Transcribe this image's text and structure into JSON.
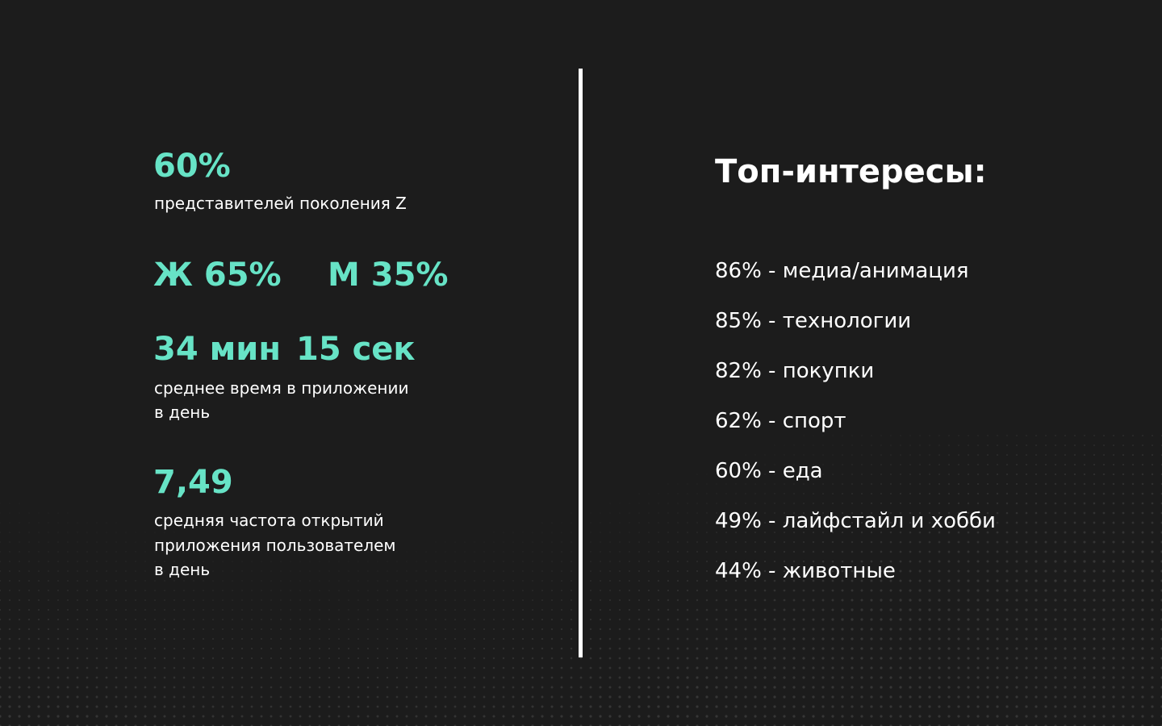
{
  "colors": {
    "background": "#1c1c1c",
    "accent": "#67e3c6",
    "text": "#ffffff",
    "dots": "#3a3a3a"
  },
  "stats": {
    "gen_z_value": "60%",
    "gen_z_caption": "представителей поколения Z",
    "female": "Ж 65%",
    "male": "М 35%",
    "time_minutes": "34 мин",
    "time_seconds": "15 сек",
    "time_caption_line1": "среднее время в приложении",
    "time_caption_line2": "в день",
    "frequency_value": "7,49",
    "frequency_caption_line1": "средняя частота открытий",
    "frequency_caption_line2": "приложения пользователем",
    "frequency_caption_line3": "в день"
  },
  "interests": {
    "heading": "Топ-интересы:",
    "items": [
      "86% - медиа/анимация",
      "85% - технологии",
      "82% - покупки",
      "62% - спорт",
      "60% - еда",
      "49% - лайфстайл и хобби",
      "44% - животные"
    ]
  }
}
